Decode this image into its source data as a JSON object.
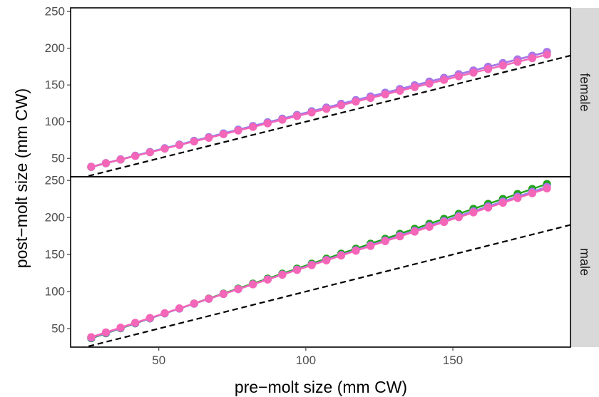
{
  "chart_data": {
    "type": "line",
    "xlabel": "pre−molt size (mm CW)",
    "ylabel": "post−molt size (mm CW)",
    "xlim": [
      20,
      190
    ],
    "ylim": [
      25,
      255
    ],
    "x_ticks": [
      50,
      100,
      150
    ],
    "y_ticks": [
      50,
      100,
      150,
      200,
      250
    ],
    "grid": false,
    "legend": "none",
    "colors": {
      "green": "#22a31a",
      "blue": "#5b8cf0",
      "purple": "#b072e8",
      "pink": "#f466b8",
      "identity": "#000000"
    },
    "x": [
      27,
      32,
      37,
      42,
      47,
      52,
      57,
      62,
      67,
      72,
      77,
      82,
      87,
      92,
      97,
      102,
      107,
      112,
      117,
      122,
      127,
      132,
      137,
      142,
      147,
      152,
      157,
      162,
      167,
      172,
      177,
      182
    ],
    "panels": [
      {
        "label": "female",
        "series": [
          {
            "color": "green",
            "intercept": 11.0,
            "slope": 1.01
          },
          {
            "color": "blue",
            "intercept": 11.5,
            "slope": 1.008
          },
          {
            "color": "purple",
            "intercept": 11.0,
            "slope": 1.01
          },
          {
            "color": "pink",
            "intercept": 12.0,
            "slope": 0.985
          }
        ]
      },
      {
        "label": "male",
        "series": [
          {
            "color": "green",
            "intercept": 0.5,
            "slope": 1.345
          },
          {
            "color": "blue",
            "intercept": 2.0,
            "slope": 1.315
          },
          {
            "color": "purple",
            "intercept": 2.5,
            "slope": 1.31
          },
          {
            "color": "pink",
            "intercept": 3.5,
            "slope": 1.295
          }
        ]
      }
    ],
    "reference_line": {
      "style": "dashed",
      "slope": 1,
      "intercept": 0
    }
  }
}
